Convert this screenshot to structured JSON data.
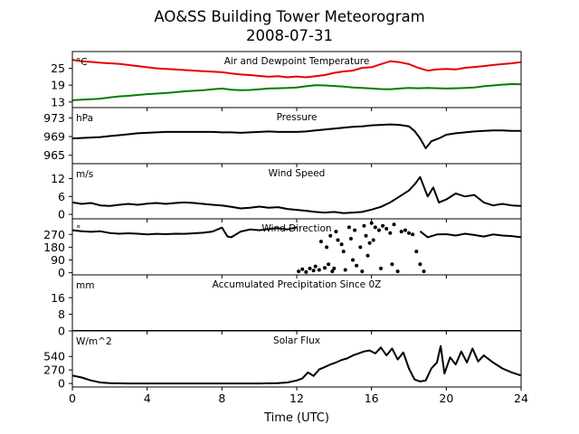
{
  "chart_data": {
    "type": "line",
    "title": "AO&SS Building Tower Meteorogram",
    "subtitle": "2008-07-31",
    "xlabel": "Time (UTC)",
    "x_ticks": [
      0,
      4,
      8,
      12,
      16,
      20,
      24
    ],
    "xlim": [
      0,
      24
    ],
    "panels": [
      {
        "id": "temperature",
        "title": "Air and Dewpoint Temperature",
        "unit": "°C",
        "ylim": [
          11,
          31
        ],
        "y_ticks": [
          13,
          19,
          25
        ],
        "series": [
          {
            "color": "#e60000",
            "x": [
              0,
              0.5,
              1,
              1.5,
              2,
              2.5,
              3,
              3.5,
              4,
              4.5,
              5,
              5.5,
              6,
              6.5,
              7,
              7.5,
              8,
              8.5,
              9,
              9.5,
              10,
              10.5,
              11,
              11.5,
              12,
              12.5,
              13,
              13.5,
              14,
              14.5,
              15,
              15.5,
              16,
              16.5,
              17,
              17.5,
              18,
              18.5,
              19,
              19.5,
              20,
              20.5,
              21,
              21.5,
              22,
              22.5,
              23,
              23.5,
              24
            ],
            "values": [
              28,
              27.5,
              27.3,
              27,
              26.8,
              26.6,
              26.2,
              25.8,
              25.4,
              25,
              24.8,
              24.6,
              24.4,
              24.2,
              24,
              23.8,
              23.6,
              23.2,
              22.8,
              22.6,
              22.3,
              22,
              22.2,
              21.8,
              22.1,
              21.8,
              22.2,
              22.6,
              23.4,
              23.9,
              24.2,
              25.2,
              25.4,
              26.5,
              27.5,
              27.2,
              26.5,
              25.2,
              24.2,
              24.6,
              24.8,
              24.6,
              25.2,
              25.5,
              25.8,
              26.2,
              26.5,
              26.8,
              27.2
            ]
          },
          {
            "color": "#007f00",
            "x": [
              0,
              0.5,
              1,
              1.5,
              2,
              2.5,
              3,
              3.5,
              4,
              4.5,
              5,
              5.5,
              6,
              6.5,
              7,
              7.5,
              8,
              8.5,
              9,
              9.5,
              10,
              10.5,
              11,
              11.5,
              12,
              12.5,
              13,
              13.5,
              14,
              14.5,
              15,
              15.5,
              16,
              16.5,
              17,
              17.5,
              18,
              18.5,
              19,
              19.5,
              20,
              20.5,
              21,
              21.5,
              22,
              22.5,
              23,
              23.5,
              24
            ],
            "values": [
              13.6,
              13.8,
              14,
              14.2,
              14.6,
              15,
              15.2,
              15.5,
              15.8,
              16,
              16.2,
              16.5,
              16.8,
              17,
              17.2,
              17.5,
              17.8,
              17.4,
              17.2,
              17.3,
              17.5,
              17.8,
              17.9,
              18,
              18.2,
              18.6,
              19,
              18.9,
              18.7,
              18.5,
              18.2,
              18,
              17.8,
              17.6,
              17.5,
              17.8,
              18,
              17.9,
              18,
              17.9,
              17.8,
              17.9,
              18,
              18.2,
              18.6,
              18.9,
              19.2,
              19.4,
              19.3
            ]
          }
        ]
      },
      {
        "id": "pressure",
        "title": "Pressure",
        "unit": "hPa",
        "ylim": [
          963.2,
          975.2
        ],
        "y_ticks": [
          965,
          969,
          973
        ],
        "series": [
          {
            "color": "#000000",
            "x": [
              0,
              0.5,
              1,
              1.5,
              2,
              2.5,
              3,
              3.5,
              4,
              4.5,
              5,
              5.5,
              6,
              6.5,
              7,
              7.5,
              8,
              8.5,
              9,
              9.5,
              10,
              10.5,
              11,
              11.5,
              12,
              12.5,
              13,
              13.5,
              14,
              14.5,
              15,
              15.5,
              16,
              16.5,
              17,
              17.5,
              18,
              18.3,
              18.6,
              18.9,
              19.2,
              19.6,
              20,
              20.5,
              21,
              21.5,
              22,
              22.5,
              23,
              23.5,
              24
            ],
            "values": [
              968.6,
              968.7,
              968.8,
              968.9,
              969.1,
              969.3,
              969.5,
              969.7,
              969.8,
              969.9,
              970,
              970,
              970,
              970,
              970,
              970,
              969.9,
              969.9,
              969.8,
              969.9,
              970,
              970.1,
              970,
              970,
              970,
              970.1,
              970.3,
              970.5,
              970.7,
              970.9,
              971.1,
              971.2,
              971.4,
              971.5,
              971.6,
              971.5,
              971.2,
              970.2,
              968.6,
              966.5,
              968,
              968.6,
              969.4,
              969.7,
              969.9,
              970.1,
              970.2,
              970.3,
              970.3,
              970.2,
              970.2
            ]
          }
        ]
      },
      {
        "id": "wind-speed",
        "title": "Wind Speed",
        "unit": "m/s",
        "ylim": [
          -1.5,
          17
        ],
        "y_ticks": [
          0,
          6,
          12
        ],
        "series": [
          {
            "color": "#000000",
            "x": [
              0,
              0.5,
              1,
              1.5,
              2,
              2.5,
              3,
              3.5,
              4,
              4.5,
              5,
              5.5,
              6,
              6.5,
              7,
              7.5,
              8,
              8.5,
              9,
              9.5,
              10,
              10.5,
              11,
              11.5,
              12,
              12.5,
              13,
              13.5,
              14,
              14.5,
              15,
              15.5,
              16,
              16.5,
              17,
              17.5,
              18,
              18.3,
              18.6,
              19,
              19.3,
              19.6,
              20,
              20.5,
              21,
              21.5,
              22,
              22.5,
              23,
              23.5,
              24
            ],
            "values": [
              4,
              3.5,
              3.8,
              3,
              2.8,
              3.2,
              3.5,
              3.2,
              3.6,
              3.8,
              3.5,
              3.8,
              4,
              3.8,
              3.5,
              3.2,
              3,
              2.5,
              2,
              2.2,
              2.6,
              2.2,
              2.4,
              1.8,
              1.5,
              1.2,
              0.8,
              0.6,
              0.8,
              0.4,
              0.6,
              0.8,
              1.6,
              2.5,
              4,
              6,
              8,
              10,
              12.5,
              6,
              9,
              4,
              5,
              7,
              6,
              6.5,
              4,
              3,
              3.5,
              3,
              2.8
            ]
          }
        ]
      },
      {
        "id": "wind-direction",
        "title": "Wind Direction",
        "unit": "°",
        "ylim": [
          -15,
          380
        ],
        "y_ticks": [
          0,
          90,
          180,
          270
        ],
        "series": [
          {
            "color": "#000000",
            "x": [
              0,
              0.5,
              1,
              1.5,
              2,
              2.5,
              3,
              3.5,
              4,
              4.5,
              5,
              5.5,
              6,
              6.5,
              7,
              7.5,
              8,
              8.3,
              8.5,
              9,
              9.5,
              10,
              10.5,
              11,
              11.5,
              12
            ],
            "values": [
              300,
              292,
              288,
              292,
              280,
              275,
              278,
              275,
              270,
              274,
              272,
              275,
              274,
              278,
              282,
              290,
              318,
              255,
              250,
              290,
              305,
              300,
              308,
              314,
              305,
              320
            ]
          },
          {
            "color": "#000000",
            "x": [
              18.6,
              19,
              19.5,
              20,
              20.5,
              21,
              21.5,
              22,
              22.5,
              23,
              23.5,
              24
            ],
            "values": [
              292,
              250,
              270,
              272,
              262,
              275,
              266,
              255,
              270,
              262,
              258,
              250
            ]
          }
        ],
        "scatter": {
          "color": "#000000",
          "x": [
            12.1,
            12.3,
            12.5,
            12.7,
            12.9,
            13.0,
            13.2,
            13.3,
            13.5,
            13.6,
            13.7,
            13.8,
            13.9,
            14.0,
            14.1,
            14.2,
            14.4,
            14.5,
            14.6,
            14.8,
            14.9,
            15.0,
            15.1,
            15.2,
            15.4,
            15.5,
            15.6,
            15.7,
            15.8,
            15.9,
            16.0,
            16.1,
            16.2,
            16.4,
            16.5,
            16.6,
            16.8,
            17.0,
            17.1,
            17.2,
            17.4,
            17.6,
            17.8,
            18.0,
            18.2,
            18.4,
            18.6,
            18.8
          ],
          "values": [
            10,
            25,
            5,
            30,
            15,
            45,
            20,
            220,
            35,
            180,
            60,
            260,
            10,
            30,
            290,
            230,
            200,
            150,
            20,
            320,
            240,
            90,
            300,
            50,
            180,
            10,
            330,
            260,
            120,
            210,
            350,
            230,
            320,
            300,
            30,
            330,
            310,
            280,
            60,
            340,
            10,
            290,
            300,
            280,
            270,
            150,
            60,
            10
          ]
        }
      },
      {
        "id": "precipitation",
        "title": "Accumulated Precipitation Since 0Z",
        "unit": "mm",
        "ylim": [
          0,
          27
        ],
        "y_ticks": [
          0,
          8,
          16
        ],
        "series": [
          {
            "color": "#000000",
            "x": [
              0,
              24
            ],
            "values": [
              0,
              0
            ]
          }
        ]
      },
      {
        "id": "solar",
        "title": "Solar Flux",
        "unit": "W/m^2",
        "ylim": [
          -70,
          1050
        ],
        "y_ticks": [
          0,
          270,
          540
        ],
        "series": [
          {
            "color": "#000000",
            "x": [
              0,
              0.5,
              1,
              1.5,
              2,
              3,
              4,
              6,
              8,
              10,
              11,
              11.5,
              12,
              12.3,
              12.6,
              12.9,
              13.2,
              13.5,
              13.8,
              14.1,
              14.4,
              14.7,
              15,
              15.3,
              15.6,
              15.9,
              16.2,
              16.5,
              16.8,
              17.1,
              17.4,
              17.7,
              18,
              18.3,
              18.6,
              18.9,
              19.2,
              19.5,
              19.7,
              19.9,
              20.2,
              20.5,
              20.8,
              21.1,
              21.4,
              21.7,
              22,
              22.5,
              23,
              23.5,
              24
            ],
            "values": [
              160,
              120,
              60,
              20,
              5,
              0,
              0,
              0,
              0,
              0,
              5,
              20,
              60,
              100,
              220,
              150,
              280,
              330,
              380,
              420,
              470,
              500,
              560,
              600,
              640,
              660,
              600,
              720,
              560,
              700,
              480,
              620,
              300,
              80,
              40,
              60,
              300,
              420,
              750,
              200,
              520,
              380,
              640,
              420,
              700,
              440,
              560,
              420,
              300,
              220,
              160
            ]
          }
        ]
      }
    ]
  }
}
